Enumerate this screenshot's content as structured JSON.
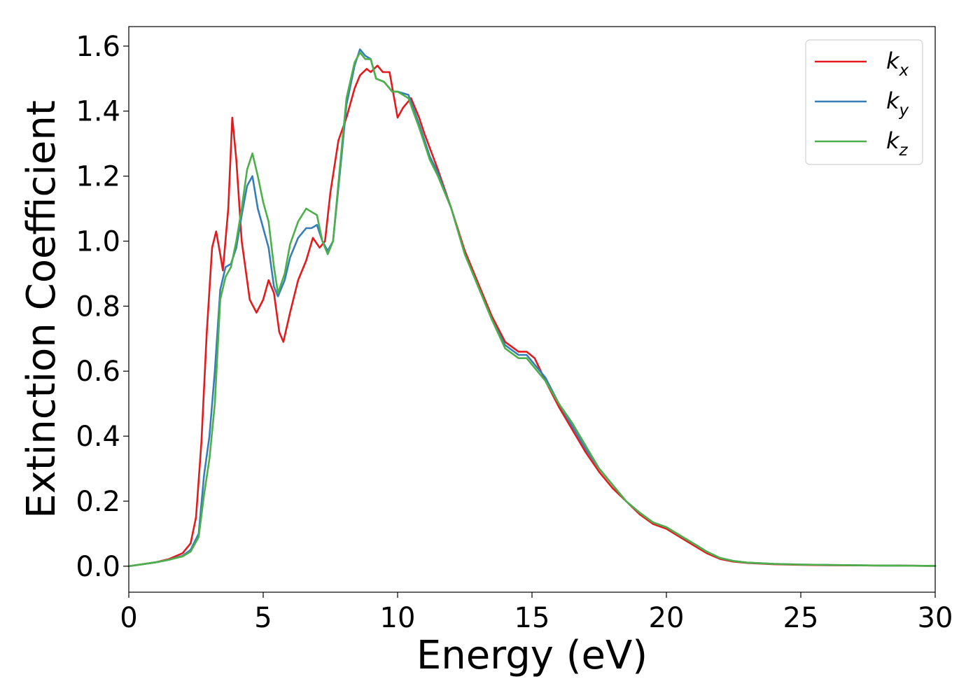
{
  "chart_data": {
    "type": "line",
    "xlabel": "Energy (eV)",
    "ylabel": "Extinction Coefficient",
    "xlim": [
      0,
      30
    ],
    "ylim": [
      -0.08,
      1.66
    ],
    "xticks": [
      0,
      5,
      10,
      15,
      20,
      25,
      30
    ],
    "yticks": [
      0.0,
      0.2,
      0.4,
      0.6,
      0.8,
      1.0,
      1.2,
      1.4,
      1.6
    ],
    "xtick_labels": [
      "0",
      "5",
      "10",
      "15",
      "20",
      "25",
      "30"
    ],
    "ytick_labels": [
      "0.0",
      "0.2",
      "0.4",
      "0.6",
      "0.8",
      "1.0",
      "1.2",
      "1.4",
      "1.6"
    ],
    "grid": false,
    "legend_position": "top-right",
    "series": [
      {
        "name": "k_x",
        "label_main": "k",
        "label_sub": "x",
        "color": "#e41a1c",
        "x": [
          0,
          1,
          1.5,
          2,
          2.3,
          2.5,
          2.7,
          2.9,
          3.1,
          3.25,
          3.4,
          3.5,
          3.7,
          3.85,
          4.0,
          4.2,
          4.5,
          4.75,
          5.0,
          5.2,
          5.4,
          5.6,
          5.75,
          6.0,
          6.3,
          6.6,
          6.85,
          7.1,
          7.3,
          7.5,
          7.8,
          8.1,
          8.4,
          8.6,
          8.85,
          9.0,
          9.25,
          9.45,
          9.7,
          10.0,
          10.2,
          10.5,
          10.8,
          11.0,
          11.5,
          12.0,
          12.5,
          13.0,
          13.5,
          14.0,
          14.5,
          14.8,
          15.1,
          15.5,
          16.0,
          16.5,
          17.0,
          17.5,
          18.0,
          18.5,
          19.0,
          19.5,
          20.0,
          20.5,
          21.0,
          21.5,
          22.0,
          22.5,
          23.0,
          24.0,
          25.0,
          26.0,
          28.0,
          30.0
        ],
        "y": [
          0.0,
          0.012,
          0.022,
          0.04,
          0.07,
          0.15,
          0.38,
          0.72,
          0.98,
          1.03,
          0.96,
          0.91,
          1.1,
          1.38,
          1.25,
          1.0,
          0.82,
          0.78,
          0.82,
          0.88,
          0.84,
          0.72,
          0.69,
          0.78,
          0.88,
          0.94,
          1.01,
          0.98,
          1.0,
          1.15,
          1.31,
          1.38,
          1.47,
          1.51,
          1.53,
          1.52,
          1.54,
          1.52,
          1.52,
          1.38,
          1.41,
          1.44,
          1.38,
          1.33,
          1.22,
          1.1,
          0.97,
          0.87,
          0.77,
          0.69,
          0.66,
          0.66,
          0.64,
          0.57,
          0.49,
          0.42,
          0.35,
          0.29,
          0.24,
          0.2,
          0.16,
          0.13,
          0.115,
          0.09,
          0.065,
          0.04,
          0.022,
          0.014,
          0.01,
          0.006,
          0.004,
          0.003,
          0.002,
          0.001
        ]
      },
      {
        "name": "k_y",
        "label_main": "k",
        "label_sub": "y",
        "color": "#377eb8",
        "x": [
          0,
          1,
          1.5,
          2,
          2.3,
          2.6,
          2.8,
          3.0,
          3.2,
          3.4,
          3.6,
          3.8,
          4.0,
          4.2,
          4.4,
          4.6,
          4.8,
          5.0,
          5.2,
          5.4,
          5.55,
          5.8,
          6.0,
          6.3,
          6.6,
          6.8,
          7.0,
          7.2,
          7.4,
          7.6,
          7.9,
          8.1,
          8.4,
          8.6,
          8.8,
          9.0,
          9.2,
          9.5,
          9.8,
          10.0,
          10.4,
          10.8,
          11.2,
          11.5,
          12.0,
          12.5,
          13.0,
          13.5,
          14.0,
          14.5,
          14.8,
          15.1,
          15.5,
          16.0,
          16.5,
          17.0,
          17.5,
          18.0,
          18.5,
          19.0,
          19.5,
          20.0,
          20.5,
          21.0,
          21.5,
          22.0,
          22.5,
          23.0,
          24.0,
          25.0,
          26.0,
          28.0,
          30.0
        ],
        "y": [
          0.0,
          0.012,
          0.02,
          0.032,
          0.05,
          0.1,
          0.28,
          0.4,
          0.6,
          0.85,
          0.92,
          0.93,
          0.98,
          1.08,
          1.17,
          1.2,
          1.1,
          1.04,
          0.98,
          0.86,
          0.83,
          0.88,
          0.95,
          1.01,
          1.04,
          1.04,
          1.05,
          1.0,
          0.97,
          1.0,
          1.25,
          1.42,
          1.54,
          1.59,
          1.57,
          1.56,
          1.5,
          1.49,
          1.46,
          1.46,
          1.45,
          1.36,
          1.26,
          1.21,
          1.1,
          0.96,
          0.86,
          0.76,
          0.68,
          0.65,
          0.65,
          0.62,
          0.58,
          0.5,
          0.43,
          0.36,
          0.3,
          0.25,
          0.2,
          0.165,
          0.135,
          0.12,
          0.095,
          0.07,
          0.045,
          0.025,
          0.016,
          0.011,
          0.007,
          0.005,
          0.004,
          0.002,
          0.001
        ]
      },
      {
        "name": "k_z",
        "label_main": "k",
        "label_sub": "z",
        "color": "#4daf4a",
        "x": [
          0,
          1,
          1.5,
          2,
          2.3,
          2.6,
          2.8,
          3.0,
          3.2,
          3.4,
          3.6,
          3.8,
          4.0,
          4.2,
          4.4,
          4.6,
          4.8,
          5.0,
          5.2,
          5.4,
          5.55,
          5.8,
          6.0,
          6.3,
          6.6,
          6.8,
          7.0,
          7.2,
          7.4,
          7.6,
          7.9,
          8.1,
          8.4,
          8.6,
          8.8,
          9.0,
          9.2,
          9.5,
          9.8,
          10.0,
          10.4,
          10.8,
          11.2,
          11.5,
          12.0,
          12.5,
          13.0,
          13.5,
          14.0,
          14.5,
          14.8,
          15.1,
          15.5,
          16.0,
          16.5,
          17.0,
          17.5,
          18.0,
          18.5,
          19.0,
          19.5,
          20.0,
          20.5,
          21.0,
          21.5,
          22.0,
          22.5,
          23.0,
          24.0,
          25.0,
          26.0,
          28.0,
          30.0
        ],
        "y": [
          0.0,
          0.012,
          0.02,
          0.03,
          0.045,
          0.09,
          0.22,
          0.33,
          0.5,
          0.82,
          0.89,
          0.92,
          1.0,
          1.1,
          1.22,
          1.27,
          1.2,
          1.12,
          1.06,
          0.92,
          0.84,
          0.9,
          0.99,
          1.06,
          1.1,
          1.09,
          1.08,
          1.0,
          0.96,
          1.0,
          1.27,
          1.44,
          1.55,
          1.58,
          1.56,
          1.56,
          1.5,
          1.49,
          1.46,
          1.46,
          1.44,
          1.35,
          1.25,
          1.2,
          1.1,
          0.96,
          0.86,
          0.76,
          0.67,
          0.64,
          0.64,
          0.61,
          0.57,
          0.5,
          0.44,
          0.37,
          0.3,
          0.25,
          0.2,
          0.165,
          0.135,
          0.12,
          0.095,
          0.07,
          0.045,
          0.025,
          0.016,
          0.011,
          0.007,
          0.005,
          0.004,
          0.002,
          0.001
        ]
      }
    ]
  }
}
